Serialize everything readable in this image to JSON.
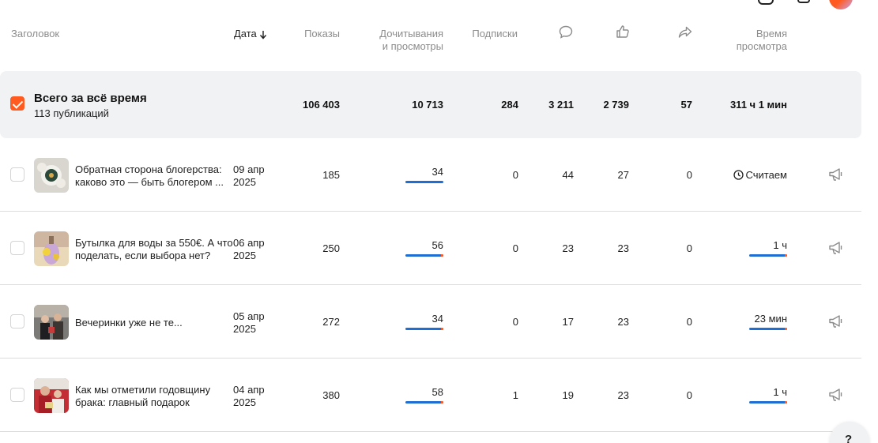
{
  "header": {
    "title": "Заголовок",
    "date": "Дата",
    "views": "Показы",
    "reads_l1": "Дочитывания",
    "reads_l2": "и просмотры",
    "subs": "Подписки",
    "comments_icon": "comment-icon",
    "likes_icon": "thumb-up-icon",
    "shares_icon": "share-icon",
    "time_l1": "Время",
    "time_l2": "просмотра"
  },
  "summary": {
    "title": "Всего за всё время",
    "subtitle": "113 публикаций",
    "views": "106 403",
    "reads": "10 713",
    "subs": "284",
    "comments": "3 211",
    "likes": "2 739",
    "shares": "57",
    "time": "311 ч 1 мин"
  },
  "rows": [
    {
      "title": "Обратная сторона блогерства: каково это — быть блогером ...",
      "date_l1": "09 апр",
      "date_l2": "2025",
      "views": "185",
      "reads": "34",
      "subs": "0",
      "comments": "44",
      "likes": "27",
      "shares": "0",
      "time": "Считаем",
      "time_bar": null
    },
    {
      "title": "Бутылка для воды за 550€. А что поделать, если выбора нет?",
      "date_l1": "06 апр",
      "date_l2": "2025",
      "views": "250",
      "reads": "56",
      "subs": "0",
      "comments": "23",
      "likes": "23",
      "shares": "0",
      "time": "1 ч"
    },
    {
      "title": "Вечеринки уже не те...",
      "date_l1": "05 апр",
      "date_l2": "2025",
      "views": "272",
      "reads": "34",
      "subs": "0",
      "comments": "17",
      "likes": "23",
      "shares": "0",
      "time": "23 мин"
    },
    {
      "title": "Как мы отметили годовщину брака: главный подарок",
      "date_l1": "04 апр",
      "date_l2": "2025",
      "views": "380",
      "reads": "58",
      "subs": "1",
      "comments": "19",
      "likes": "23",
      "shares": "0",
      "time": "1 ч"
    }
  ],
  "help": {
    "label": "?"
  },
  "colors": {
    "accent": "#ff5a1f",
    "bar": "#1f6ed4",
    "summary_bg": "#f1f2f4"
  }
}
